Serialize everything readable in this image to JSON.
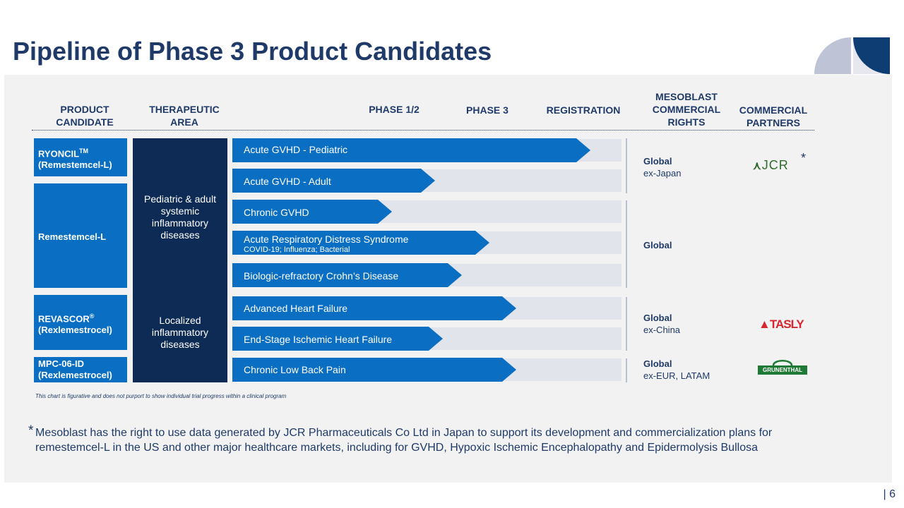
{
  "title": "Pipeline of Phase 3 Product Candidates",
  "headers": {
    "product": [
      "PRODUCT",
      "CANDIDATE"
    ],
    "area": [
      "THERAPEUTIC",
      "AREA"
    ],
    "phase12": "PHASE 1/2",
    "phase3": "PHASE 3",
    "registration": "REGISTRATION",
    "rights": [
      "MESOBLAST",
      "COMMERCIAL",
      "RIGHTS"
    ],
    "partners": [
      "COMMERCIAL",
      "PARTNERS"
    ]
  },
  "products": [
    {
      "name": "RYONCIL",
      "sup": "TM",
      "sub": "(Remestemcel-L)"
    },
    {
      "name": "Remestemcel-L"
    },
    {
      "name": "REVASCOR",
      "sup": "®",
      "sub": "(Rexlemestrocel)"
    },
    {
      "name": "MPC-06-ID",
      "sub": "(Rexlemestrocel)"
    }
  ],
  "areas": [
    [
      "Pediatric & adult",
      "systemic",
      "inflammatory",
      "diseases"
    ],
    [
      "Localized",
      "inflammatory",
      "diseases"
    ]
  ],
  "indications": [
    {
      "label": "Acute GVHD - Pediatric",
      "progress": 0.92
    },
    {
      "label": "Acute GVHD - Adult",
      "progress": 0.52
    },
    {
      "label": "Chronic GVHD",
      "progress": 0.41
    },
    {
      "label": "Acute Respiratory Distress Syndrome",
      "sublabel": "COVID-19; Influenza; Bacterial",
      "progress": 0.66
    },
    {
      "label": "Biologic-refractory Crohn’s Disease",
      "progress": 0.59
    },
    {
      "label": "Advanced Heart Failure",
      "progress": 0.73
    },
    {
      "label": "End-Stage Ischemic Heart Failure",
      "progress": 0.54
    },
    {
      "label": "Chronic Low Back Pain",
      "progress": 0.73
    }
  ],
  "rights": [
    {
      "scope": "Global",
      "detail": "ex-Japan"
    },
    {
      "scope": "Global"
    },
    {
      "scope": "Global",
      "detail": "ex-China"
    },
    {
      "scope": "Global",
      "detail": "ex-EUR, LATAM"
    }
  ],
  "partners": [
    {
      "name": "JCR",
      "color": "#2e6b2e",
      "star": "*"
    },
    {
      "name": "TASLY",
      "color": "#d7262e"
    },
    {
      "name": "GRUNENTHAL",
      "color": "#1f7a35"
    }
  ],
  "chart_note": "This chart is figurative and does not purport to show individual trial progress within a clinical program",
  "footnote": {
    "star": "*",
    "text": "Mesoblast has the right to use data generated by JCR Pharmaceuticals Co Ltd in Japan to support its development and commercialization plans for remestemcel-L in the US and other major healthcare markets, including for GVHD, Hypoxic Ischemic Encephalopathy and Epidermolysis Bullosa"
  },
  "page_number": "| 6",
  "colors": {
    "navy": "#1f3a68",
    "bar_blue": "#0a6fc2",
    "dark_navy": "#0d2b55",
    "track": "#e2e4ec"
  }
}
